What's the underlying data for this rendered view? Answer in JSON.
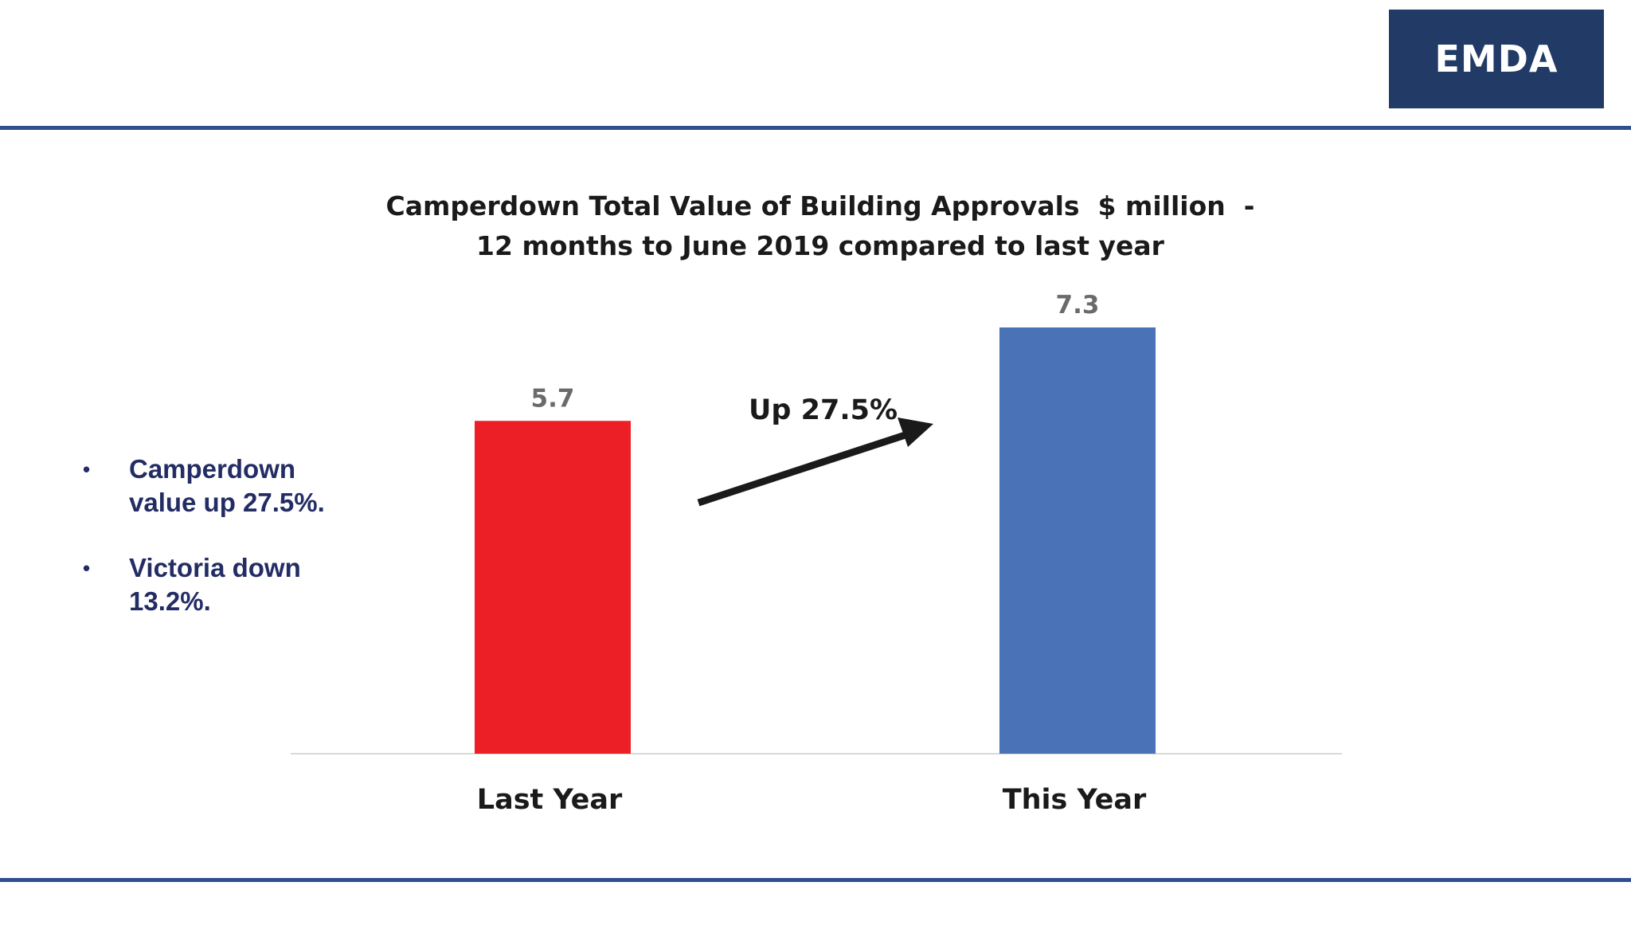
{
  "brand": {
    "logo_text": "EMDA",
    "logo_color": "#213a66",
    "rule_color": "#2f4f8f"
  },
  "bullets": [
    "Camperdown value up 27.5%.",
    "Victoria down 13.2%."
  ],
  "chart_data": {
    "type": "bar",
    "title_lines": [
      "Camperdown Total Value of Building Approvals  $ million  -",
      "12 months to June 2019 compared to last year"
    ],
    "categories": [
      "Last Year",
      "This Year"
    ],
    "values": [
      5.7,
      7.3
    ],
    "bar_colors": [
      "#ec1f26",
      "#4a72b6"
    ],
    "data_label_color": "#6a6a6a",
    "annotation": {
      "text": "Up 27.5%",
      "shape": "arrow",
      "direction": "up-right"
    },
    "ylim": [
      0,
      7.3
    ],
    "grid": false,
    "legend": "none"
  }
}
